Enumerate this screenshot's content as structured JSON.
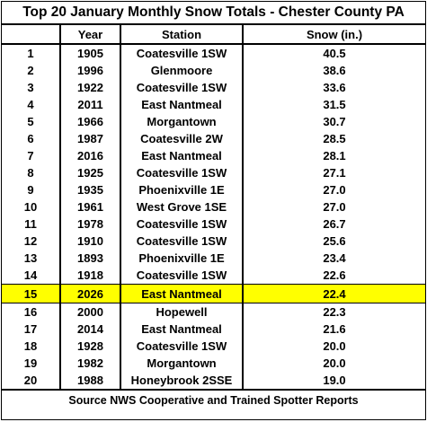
{
  "title": "Top 20 January Monthly Snow Totals - Chester County PA",
  "columns": {
    "rank": "",
    "year": "Year",
    "station": "Station",
    "snow": "Snow (in.)"
  },
  "rows": [
    {
      "rank": "1",
      "year": "1905",
      "station": "Coatesville 1SW",
      "snow": "40.5"
    },
    {
      "rank": "2",
      "year": "1996",
      "station": "Glenmoore",
      "snow": "38.6"
    },
    {
      "rank": "3",
      "year": "1922",
      "station": "Coatesville 1SW",
      "snow": "33.6"
    },
    {
      "rank": "4",
      "year": "2011",
      "station": "East Nantmeal",
      "snow": "31.5"
    },
    {
      "rank": "5",
      "year": "1966",
      "station": "Morgantown",
      "snow": "30.7"
    },
    {
      "rank": "6",
      "year": "1987",
      "station": "Coatesville 2W",
      "snow": "28.5"
    },
    {
      "rank": "7",
      "year": "2016",
      "station": "East Nantmeal",
      "snow": "28.1"
    },
    {
      "rank": "8",
      "year": "1925",
      "station": "Coatesville 1SW",
      "snow": "27.1"
    },
    {
      "rank": "9",
      "year": "1935",
      "station": "Phoenixville 1E",
      "snow": "27.0"
    },
    {
      "rank": "10",
      "year": "1961",
      "station": "West Grove 1SE",
      "snow": "27.0"
    },
    {
      "rank": "11",
      "year": "1978",
      "station": "Coatesville 1SW",
      "snow": "26.7"
    },
    {
      "rank": "12",
      "year": "1910",
      "station": "Coatesville 1SW",
      "snow": "25.6"
    },
    {
      "rank": "13",
      "year": "1893",
      "station": "Phoenixville 1E",
      "snow": "23.4"
    },
    {
      "rank": "14",
      "year": "1918",
      "station": "Coatesville 1SW",
      "snow": "22.6"
    },
    {
      "rank": "15",
      "year": "2026",
      "station": "East Nantmeal",
      "snow": "22.4",
      "highlight": true
    },
    {
      "rank": "16",
      "year": "2000",
      "station": "Hopewell",
      "snow": "22.3"
    },
    {
      "rank": "17",
      "year": "2014",
      "station": "East Nantmeal",
      "snow": "21.6"
    },
    {
      "rank": "18",
      "year": "1928",
      "station": "Coatesville 1SW",
      "snow": "20.0"
    },
    {
      "rank": "19",
      "year": "1982",
      "station": "Morgantown",
      "snow": "20.0"
    },
    {
      "rank": "20",
      "year": "1988",
      "station": "Honeybrook 2SSE",
      "snow": "19.0"
    }
  ],
  "source": "Source NWS Cooperative and Trained Spotter Reports",
  "colors": {
    "highlight": "#ffff00",
    "border": "#000000"
  }
}
